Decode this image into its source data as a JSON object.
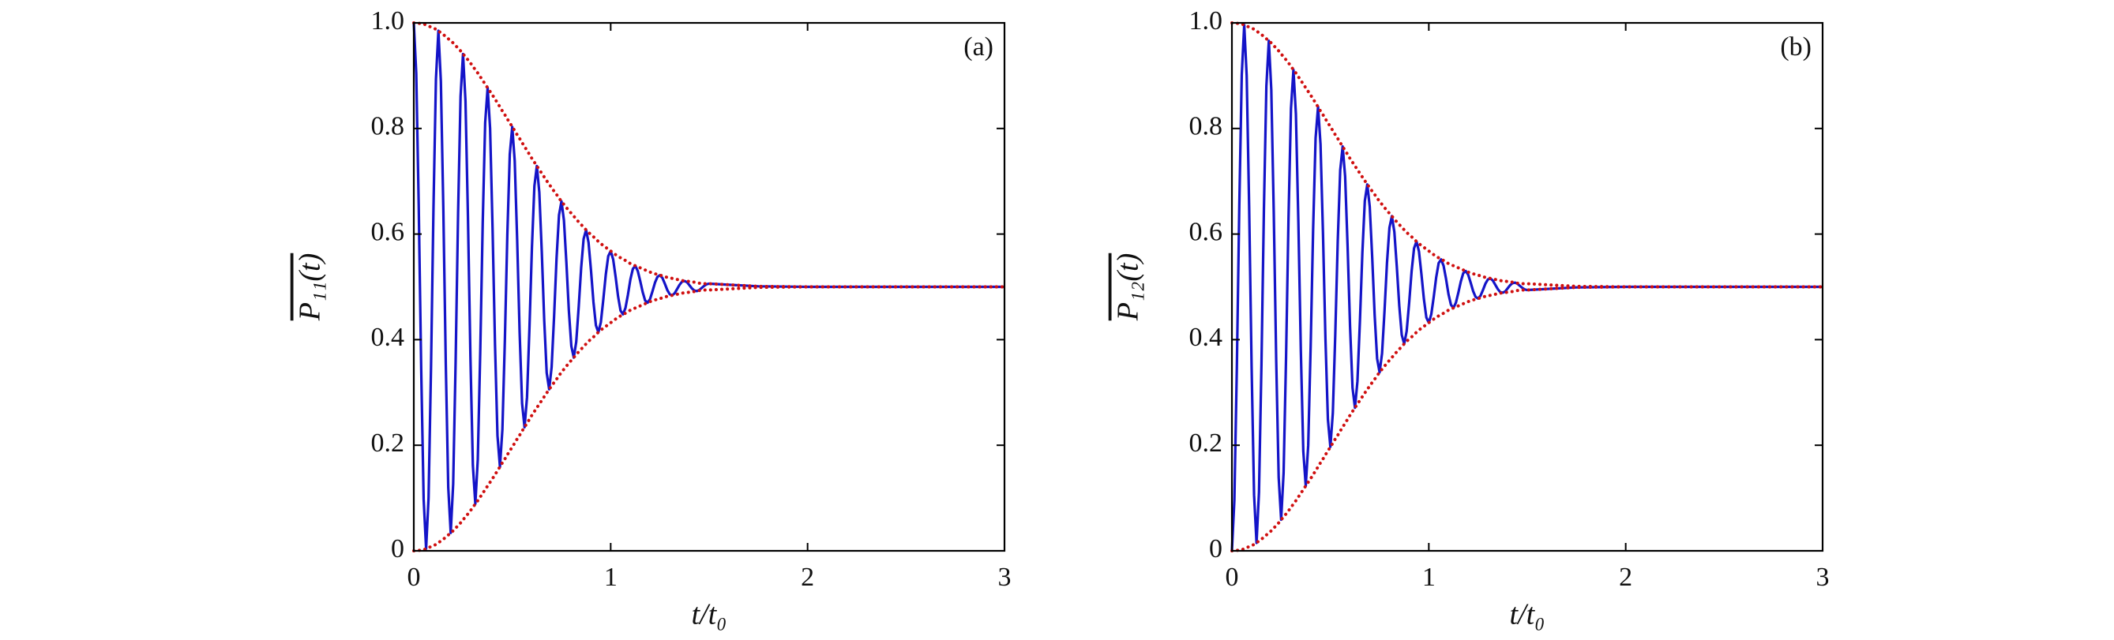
{
  "chart_data": [
    {
      "type": "line",
      "panel_label": "(a)",
      "xlabel": "t/t₀",
      "ylabel": "P₁₁(t)",
      "xlim": [
        0,
        3
      ],
      "ylim": [
        0,
        1
      ],
      "xticks": [
        0,
        1,
        2,
        3
      ],
      "yticks": [
        0,
        0.2,
        0.4,
        0.6,
        0.8,
        {
          "value": 1,
          "label": "1.0"
        }
      ],
      "x": [
        0,
        0.0125,
        0.025,
        0.0375,
        0.05,
        0.0625,
        0.075,
        0.0875,
        0.1,
        0.1125,
        0.125,
        0.1375,
        0.15,
        0.1625,
        0.175,
        0.1875,
        0.2,
        0.2125,
        0.225,
        0.2375,
        0.25,
        0.2625,
        0.275,
        0.2875,
        0.3,
        0.3125,
        0.325,
        0.3375,
        0.35,
        0.3625,
        0.375,
        0.3875,
        0.4,
        0.4125,
        0.425,
        0.4375,
        0.45,
        0.4625,
        0.475,
        0.4875,
        0.5,
        0.5125,
        0.525,
        0.5375,
        0.55,
        0.5625,
        0.575,
        0.5875,
        0.6,
        0.6125,
        0.625,
        0.6375,
        0.65,
        0.6625,
        0.675,
        0.6875,
        0.7,
        0.7125,
        0.725,
        0.7375,
        0.75,
        0.7625,
        0.775,
        0.7875,
        0.8,
        0.8125,
        0.825,
        0.8375,
        0.85,
        0.8625,
        0.875,
        0.8875,
        0.9,
        0.9125,
        0.925,
        0.9375,
        0.95,
        0.9625,
        0.975,
        0.9875,
        1,
        1.0125,
        1.025,
        1.0375,
        1.05,
        1.0625,
        1.075,
        1.0875,
        1.1,
        1.1125,
        1.125,
        1.1375,
        1.15,
        1.1625,
        1.175,
        1.1875,
        1.2,
        1.2125,
        1.225,
        1.2375,
        1.25,
        1.2625,
        1.275,
        1.2875,
        1.3,
        1.3125,
        1.325,
        1.3375,
        1.35,
        1.3625,
        1.375,
        1.3875,
        1.4,
        1.4125,
        1.425,
        1.4375,
        1.45,
        1.4625,
        1.475,
        1.4875,
        1.5,
        1.75,
        2,
        2.5,
        3
      ],
      "series": [
        {
          "color": "#1414c8",
          "style": "solid",
          "values": [
            1,
            0.904,
            0.654,
            0.346,
            0.098,
            0.004,
            0.1,
            0.348,
            0.651,
            0.894,
            0.985,
            0.889,
            0.648,
            0.353,
            0.12,
            0.034,
            0.127,
            0.359,
            0.64,
            0.861,
            0.941,
            0.852,
            0.633,
            0.369,
            0.162,
            0.089,
            0.173,
            0.377,
            0.621,
            0.811,
            0.877,
            0.8,
            0.612,
            0.39,
            0.218,
            0.159,
            0.23,
            0.399,
            0.598,
            0.751,
            0.803,
            0.739,
            0.589,
            0.413,
            0.279,
            0.234,
            0.291,
            0.423,
            0.575,
            0.691,
            0.729,
            0.679,
            0.566,
            0.436,
            0.337,
            0.306,
            0.348,
            0.444,
            0.554,
            0.636,
            0.662,
            0.626,
            0.546,
            0.455,
            0.388,
            0.366,
            0.396,
            0.462,
            0.536,
            0.591,
            0.608,
            0.584,
            0.531,
            0.471,
            0.427,
            0.414,
            0.433,
            0.476,
            0.523,
            0.558,
            0.568,
            0.552,
            0.519,
            0.482,
            0.455,
            0.448,
            0.46,
            0.485,
            0.514,
            0.534,
            0.54,
            0.53,
            0.511,
            0.49,
            0.474,
            0.47,
            0.477,
            0.492,
            0.508,
            0.519,
            0.522,
            0.517,
            0.506,
            0.494,
            0.486,
            0.484,
            0.488,
            0.496,
            0.504,
            0.51,
            0.511,
            0.509,
            0.503,
            0.497,
            0.493,
            0.492,
            0.494,
            0.498,
            0.502,
            0.505,
            0.506,
            0.501,
            0.5,
            0.5,
            0.5
          ]
        },
        {
          "color": "#d01010",
          "style": "dotted",
          "values": [
            1,
            1,
            0.999,
            0.999,
            0.998,
            0.996,
            0.994,
            0.992,
            0.99,
            0.988,
            0.985,
            0.981,
            0.978,
            0.974,
            0.97,
            0.966,
            0.962,
            0.957,
            0.952,
            0.947,
            0.941,
            0.936,
            0.93,
            0.924,
            0.918,
            0.911,
            0.905,
            0.898,
            0.891,
            0.884,
            0.877,
            0.87,
            0.863,
            0.856,
            0.848,
            0.841,
            0.833,
            0.826,
            0.818,
            0.811,
            0.803,
            0.796,
            0.788,
            0.781,
            0.773,
            0.766,
            0.758,
            0.751,
            0.743,
            0.736,
            0.729,
            0.722,
            0.715,
            0.708,
            0.701,
            0.694,
            0.688,
            0.681,
            0.675,
            0.668,
            0.662,
            0.656,
            0.65,
            0.645,
            0.639,
            0.634,
            0.628,
            0.623,
            0.618,
            0.613,
            0.608,
            0.603,
            0.599,
            0.595,
            0.59,
            0.586,
            0.582,
            0.578,
            0.575,
            0.571,
            0.568,
            0.564,
            0.561,
            0.558,
            0.555,
            0.552,
            0.55,
            0.547,
            0.544,
            0.542,
            0.54,
            0.538,
            0.536,
            0.534,
            0.532,
            0.53,
            0.528,
            0.526,
            0.525,
            0.523,
            0.522,
            0.521,
            0.519,
            0.518,
            0.517,
            0.516,
            0.515,
            0.514,
            0.513,
            0.512,
            0.511,
            0.511,
            0.51,
            0.509,
            0.509,
            0.508,
            0.507,
            0.507,
            0.506,
            0.506,
            0.506,
            0.501,
            0.5,
            0.5,
            0.5
          ]
        },
        {
          "color": "#d01010",
          "style": "dotted",
          "values": [
            0,
            0,
            0.001,
            0.001,
            0.002,
            0.004,
            0.006,
            0.008,
            0.01,
            0.012,
            0.015,
            0.019,
            0.022,
            0.026,
            0.03,
            0.034,
            0.038,
            0.043,
            0.048,
            0.053,
            0.059,
            0.064,
            0.07,
            0.076,
            0.082,
            0.089,
            0.095,
            0.102,
            0.109,
            0.116,
            0.123,
            0.13,
            0.137,
            0.144,
            0.152,
            0.159,
            0.167,
            0.174,
            0.182,
            0.189,
            0.197,
            0.204,
            0.212,
            0.219,
            0.227,
            0.234,
            0.242,
            0.249,
            0.257,
            0.264,
            0.271,
            0.278,
            0.285,
            0.292,
            0.299,
            0.306,
            0.312,
            0.319,
            0.325,
            0.332,
            0.338,
            0.344,
            0.35,
            0.355,
            0.361,
            0.366,
            0.372,
            0.377,
            0.382,
            0.387,
            0.392,
            0.397,
            0.401,
            0.405,
            0.41,
            0.414,
            0.418,
            0.422,
            0.425,
            0.429,
            0.432,
            0.436,
            0.439,
            0.442,
            0.445,
            0.448,
            0.45,
            0.453,
            0.456,
            0.458,
            0.46,
            0.462,
            0.464,
            0.466,
            0.468,
            0.47,
            0.472,
            0.474,
            0.475,
            0.477,
            0.478,
            0.479,
            0.481,
            0.482,
            0.483,
            0.484,
            0.485,
            0.486,
            0.487,
            0.488,
            0.489,
            0.489,
            0.49,
            0.491,
            0.491,
            0.492,
            0.493,
            0.493,
            0.494,
            0.494,
            0.494,
            0.499,
            0.5,
            0.5,
            0.5
          ]
        }
      ]
    },
    {
      "type": "line",
      "panel_label": "(b)",
      "xlabel": "t/t₀",
      "ylabel": "P₁₂(t)",
      "xlim": [
        0,
        3
      ],
      "ylim": [
        0,
        1
      ],
      "xticks": [
        0,
        1,
        2,
        3
      ],
      "yticks": [
        0,
        0.2,
        0.4,
        0.6,
        0.8,
        {
          "value": 1,
          "label": "1.0"
        }
      ],
      "x": [
        0,
        0.0125,
        0.025,
        0.0375,
        0.05,
        0.0625,
        0.075,
        0.0875,
        0.1,
        0.1125,
        0.125,
        0.1375,
        0.15,
        0.1625,
        0.175,
        0.1875,
        0.2,
        0.2125,
        0.225,
        0.2375,
        0.25,
        0.2625,
        0.275,
        0.2875,
        0.3,
        0.3125,
        0.325,
        0.3375,
        0.35,
        0.3625,
        0.375,
        0.3875,
        0.4,
        0.4125,
        0.425,
        0.4375,
        0.45,
        0.4625,
        0.475,
        0.4875,
        0.5,
        0.5125,
        0.525,
        0.5375,
        0.55,
        0.5625,
        0.575,
        0.5875,
        0.6,
        0.6125,
        0.625,
        0.6375,
        0.65,
        0.6625,
        0.675,
        0.6875,
        0.7,
        0.7125,
        0.725,
        0.7375,
        0.75,
        0.7625,
        0.775,
        0.7875,
        0.8,
        0.8125,
        0.825,
        0.8375,
        0.85,
        0.8625,
        0.875,
        0.8875,
        0.9,
        0.9125,
        0.925,
        0.9375,
        0.95,
        0.9625,
        0.975,
        0.9875,
        1,
        1.0125,
        1.025,
        1.0375,
        1.05,
        1.0625,
        1.075,
        1.0875,
        1.1,
        1.1125,
        1.125,
        1.1375,
        1.15,
        1.1625,
        1.175,
        1.1875,
        1.2,
        1.2125,
        1.225,
        1.2375,
        1.25,
        1.2625,
        1.275,
        1.2875,
        1.3,
        1.3125,
        1.325,
        1.3375,
        1.35,
        1.3625,
        1.375,
        1.3875,
        1.4,
        1.4125,
        1.425,
        1.4375,
        1.45,
        1.4625,
        1.475,
        1.4875,
        1.5,
        1.75,
        2,
        2.5,
        3
      ],
      "series": [
        {
          "color": "#1414c8",
          "style": "solid",
          "values": [
            0,
            0.096,
            0.346,
            0.654,
            0.902,
            0.996,
            0.9,
            0.652,
            0.349,
            0.106,
            0.015,
            0.111,
            0.352,
            0.647,
            0.88,
            0.966,
            0.873,
            0.641,
            0.36,
            0.139,
            0.059,
            0.148,
            0.367,
            0.631,
            0.838,
            0.911,
            0.827,
            0.623,
            0.379,
            0.189,
            0.123,
            0.2,
            0.388,
            0.61,
            0.782,
            0.841,
            0.77,
            0.601,
            0.402,
            0.249,
            0.197,
            0.261,
            0.411,
            0.587,
            0.721,
            0.766,
            0.709,
            0.577,
            0.425,
            0.309,
            0.271,
            0.321,
            0.434,
            0.564,
            0.663,
            0.694,
            0.652,
            0.556,
            0.446,
            0.364,
            0.338,
            0.374,
            0.454,
            0.545,
            0.612,
            0.634,
            0.604,
            0.538,
            0.464,
            0.409,
            0.392,
            0.416,
            0.469,
            0.529,
            0.573,
            0.586,
            0.567,
            0.524,
            0.477,
            0.442,
            0.432,
            0.448,
            0.481,
            0.518,
            0.545,
            0.552,
            0.54,
            0.515,
            0.486,
            0.466,
            0.46,
            0.47,
            0.489,
            0.51,
            0.526,
            0.53,
            0.523,
            0.508,
            0.492,
            0.481,
            0.478,
            0.483,
            0.494,
            0.506,
            0.514,
            0.516,
            0.512,
            0.504,
            0.496,
            0.49,
            0.489,
            0.491,
            0.497,
            0.503,
            0.507,
            0.508,
            0.506,
            0.502,
            0.498,
            0.495,
            0.494,
            0.499,
            0.5,
            0.5,
            0.5
          ]
        },
        {
          "color": "#d01010",
          "style": "dotted",
          "values": [
            1,
            1,
            0.999,
            0.999,
            0.998,
            0.996,
            0.994,
            0.992,
            0.99,
            0.988,
            0.985,
            0.981,
            0.978,
            0.974,
            0.97,
            0.966,
            0.962,
            0.957,
            0.952,
            0.947,
            0.941,
            0.936,
            0.93,
            0.924,
            0.918,
            0.911,
            0.905,
            0.898,
            0.891,
            0.884,
            0.877,
            0.87,
            0.863,
            0.856,
            0.848,
            0.841,
            0.833,
            0.826,
            0.818,
            0.811,
            0.803,
            0.796,
            0.788,
            0.781,
            0.773,
            0.766,
            0.758,
            0.751,
            0.743,
            0.736,
            0.729,
            0.722,
            0.715,
            0.708,
            0.701,
            0.694,
            0.688,
            0.681,
            0.675,
            0.668,
            0.662,
            0.656,
            0.65,
            0.645,
            0.639,
            0.634,
            0.628,
            0.623,
            0.618,
            0.613,
            0.608,
            0.603,
            0.599,
            0.595,
            0.59,
            0.586,
            0.582,
            0.578,
            0.575,
            0.571,
            0.568,
            0.564,
            0.561,
            0.558,
            0.555,
            0.552,
            0.55,
            0.547,
            0.544,
            0.542,
            0.54,
            0.538,
            0.536,
            0.534,
            0.532,
            0.53,
            0.528,
            0.526,
            0.525,
            0.523,
            0.522,
            0.521,
            0.519,
            0.518,
            0.517,
            0.516,
            0.515,
            0.514,
            0.513,
            0.512,
            0.511,
            0.511,
            0.51,
            0.509,
            0.509,
            0.508,
            0.507,
            0.507,
            0.506,
            0.506,
            0.506,
            0.501,
            0.5,
            0.5,
            0.5
          ]
        },
        {
          "color": "#d01010",
          "style": "dotted",
          "values": [
            0,
            0,
            0.001,
            0.001,
            0.002,
            0.004,
            0.006,
            0.008,
            0.01,
            0.012,
            0.015,
            0.019,
            0.022,
            0.026,
            0.03,
            0.034,
            0.038,
            0.043,
            0.048,
            0.053,
            0.059,
            0.064,
            0.07,
            0.076,
            0.082,
            0.089,
            0.095,
            0.102,
            0.109,
            0.116,
            0.123,
            0.13,
            0.137,
            0.144,
            0.152,
            0.159,
            0.167,
            0.174,
            0.182,
            0.189,
            0.197,
            0.204,
            0.212,
            0.219,
            0.227,
            0.234,
            0.242,
            0.249,
            0.257,
            0.264,
            0.271,
            0.278,
            0.285,
            0.292,
            0.299,
            0.306,
            0.312,
            0.319,
            0.325,
            0.332,
            0.338,
            0.344,
            0.35,
            0.355,
            0.361,
            0.366,
            0.372,
            0.377,
            0.382,
            0.387,
            0.392,
            0.397,
            0.401,
            0.405,
            0.41,
            0.414,
            0.418,
            0.422,
            0.425,
            0.429,
            0.432,
            0.436,
            0.439,
            0.442,
            0.445,
            0.448,
            0.45,
            0.453,
            0.456,
            0.458,
            0.46,
            0.462,
            0.464,
            0.466,
            0.468,
            0.47,
            0.472,
            0.474,
            0.475,
            0.477,
            0.478,
            0.479,
            0.481,
            0.482,
            0.483,
            0.484,
            0.485,
            0.486,
            0.487,
            0.488,
            0.489,
            0.489,
            0.49,
            0.491,
            0.491,
            0.492,
            0.493,
            0.493,
            0.494,
            0.494,
            0.494,
            0.499,
            0.5,
            0.5,
            0.5
          ]
        }
      ]
    }
  ]
}
